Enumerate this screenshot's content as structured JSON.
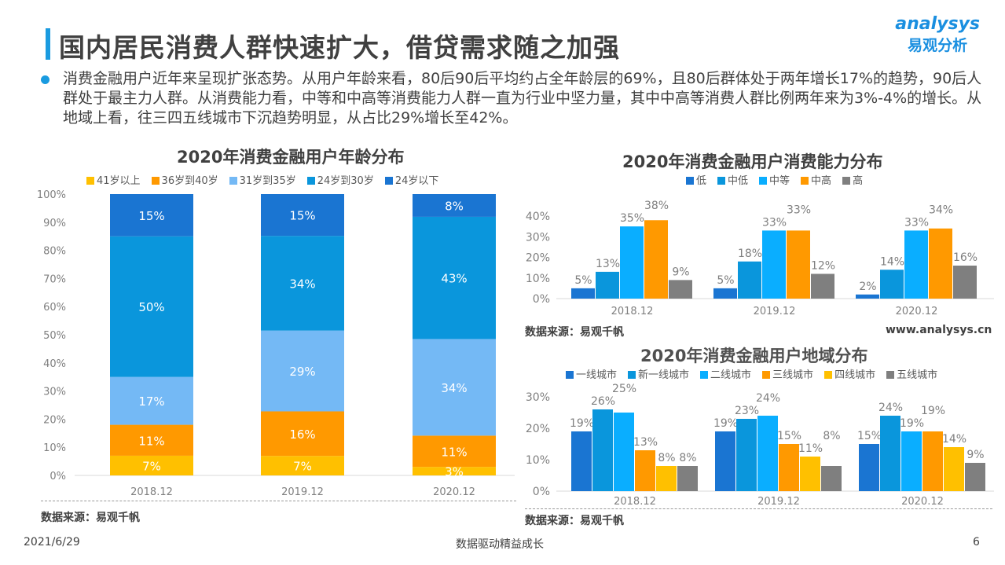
{
  "header": {
    "title": "国内居民消费人群快速扩大，借贷需求随之加强",
    "logo_en": "analysys",
    "logo_cn": "易观分析"
  },
  "description": "消费金融用户近年来呈现扩张态势。从用户年龄来看，80后90后平均约占全年龄层的69%，且80后群体处于两年增长17%的趋势，90后人群处于最主力人群。从消费能力看，中等和中高等消费能力人群一直为行业中坚力量，其中中高等消费人群比例两年来为3%-4%的增长。从地域上看，往三四五线城市下沉趋势明显，从占比29%增长至42%。",
  "footer": {
    "date": "2021/6/29",
    "slogan": "数据驱动精益成长",
    "page": "6"
  },
  "website": "www.analysys.cn",
  "chart_data": [
    {
      "type": "bar",
      "stacked": true,
      "title": "2020年消费金融用户年龄分布",
      "categories": [
        "2018.12",
        "2019.12",
        "2020.12"
      ],
      "ylim": [
        0,
        100
      ],
      "yticks": [
        "0%",
        "10%",
        "20%",
        "30%",
        "40%",
        "50%",
        "60%",
        "70%",
        "80%",
        "90%",
        "100%"
      ],
      "legend": "top",
      "series": [
        {
          "name": "41岁以上",
          "color": "#ffc000",
          "values": [
            7,
            7,
            3
          ]
        },
        {
          "name": "36岁到40岁",
          "color": "#ff9900",
          "values": [
            11,
            16,
            11
          ]
        },
        {
          "name": "31岁到35岁",
          "color": "#74b9f5",
          "values": [
            17,
            29,
            34
          ]
        },
        {
          "name": "24岁到30岁",
          "color": "#0a96dc",
          "values": [
            50,
            34,
            43
          ]
        },
        {
          "name": "24岁以下",
          "color": "#1a75d2",
          "values": [
            15,
            15,
            8
          ]
        }
      ],
      "source": "数据来源：易观千帆"
    },
    {
      "type": "bar",
      "title": "2020年消费金融用户消费能力分布",
      "categories": [
        "2018.12",
        "2019.12",
        "2020.12"
      ],
      "ylim": [
        0,
        40
      ],
      "yticks": [
        "0%",
        "10%",
        "20%",
        "30%",
        "40%"
      ],
      "legend": "top",
      "series": [
        {
          "name": "低",
          "color": "#1a75d2",
          "values": [
            5,
            5,
            2
          ]
        },
        {
          "name": "中低",
          "color": "#0a96dc",
          "values": [
            13,
            18,
            14
          ]
        },
        {
          "name": "中等",
          "color": "#0aaeff",
          "values": [
            35,
            33,
            33
          ]
        },
        {
          "name": "中高",
          "color": "#ff9900",
          "values": [
            38,
            33,
            34
          ]
        },
        {
          "name": "高",
          "color": "#7f7f7f",
          "values": [
            9,
            12,
            16
          ]
        }
      ],
      "source": "数据来源：易观千帆"
    },
    {
      "type": "bar",
      "title": "2020年消费金融用户地域分布",
      "categories": [
        "2018.12",
        "2019.12",
        "2020.12"
      ],
      "ylim": [
        0,
        30
      ],
      "yticks": [
        "0%",
        "10%",
        "20%",
        "30%"
      ],
      "legend": "top",
      "series": [
        {
          "name": "一线城市",
          "color": "#1a75d2",
          "values": [
            19,
            19,
            15
          ]
        },
        {
          "name": "新一线城市",
          "color": "#0a96dc",
          "values": [
            26,
            23,
            24
          ]
        },
        {
          "name": "二线城市",
          "color": "#0aaeff",
          "values": [
            25,
            24,
            19
          ]
        },
        {
          "name": "三线城市",
          "color": "#ff9900",
          "values": [
            13,
            15,
            19
          ]
        },
        {
          "name": "四线城市",
          "color": "#ffc000",
          "values": [
            8,
            11,
            14
          ]
        },
        {
          "name": "五线城市",
          "color": "#7f7f7f",
          "values": [
            8,
            8,
            9
          ]
        }
      ],
      "source": "数据来源：易观千帆"
    }
  ]
}
